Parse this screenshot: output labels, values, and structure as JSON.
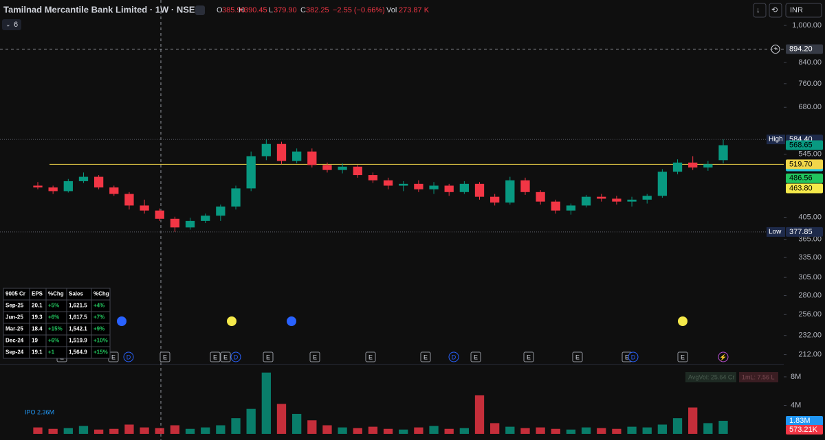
{
  "header": {
    "title": "Tamilnad Mercantile Bank Limited · 1W · NSE",
    "open_label": "O",
    "open": "385.90",
    "high_label": "H",
    "high": "390.45",
    "low_label": "L",
    "low": "379.90",
    "close_label": "C",
    "close": "382.25",
    "change": "−2.55 (−0.66%)",
    "volume_label": "Vol",
    "volume": "273.87 K",
    "interval_count": "6",
    "currency": "INR"
  },
  "fundamentals": {
    "header": [
      "9005 Cr",
      "EPS",
      "%Chg",
      "Sales",
      "%Chg"
    ],
    "rows": [
      [
        "Sep-25",
        "20.1",
        "+5%",
        "1,621.5",
        "+4%"
      ],
      [
        "Jun-25",
        "19.3",
        "+6%",
        "1,617.5",
        "+7%"
      ],
      [
        "Mar-25",
        "18.4",
        "+15%",
        "1,542.1",
        "+9%"
      ],
      [
        "Dec-24",
        "19",
        "+6%",
        "1,519.9",
        "+10%"
      ],
      [
        "Sep-24",
        "19.1",
        "+1",
        "1,564.9",
        "+15%"
      ]
    ]
  },
  "events": [
    "E",
    "E",
    "D",
    "E",
    "E",
    "E",
    "D",
    "E",
    "E",
    "E",
    "E",
    "D",
    "E",
    "E",
    "E",
    "E",
    "D",
    "E"
  ],
  "chart_data": {
    "type": "candlestick",
    "log_scale": true,
    "up_color": "#089981",
    "down_color": "#f23645",
    "candles": [
      [
        470,
        478,
        462,
        466
      ],
      [
        466,
        470,
        452,
        458
      ],
      [
        458,
        485,
        455,
        480
      ],
      [
        480,
        500,
        476,
        490
      ],
      [
        490,
        494,
        462,
        466
      ],
      [
        466,
        470,
        448,
        452
      ],
      [
        452,
        456,
        420,
        428
      ],
      [
        428,
        440,
        412,
        418
      ],
      [
        418,
        422,
        398,
        402
      ],
      [
        402,
        406,
        378,
        386
      ],
      [
        386,
        404,
        382,
        398
      ],
      [
        398,
        412,
        394,
        408
      ],
      [
        408,
        430,
        398,
        426
      ],
      [
        426,
        470,
        420,
        464
      ],
      [
        464,
        552,
        458,
        540
      ],
      [
        540,
        584,
        530,
        572
      ],
      [
        572,
        578,
        520,
        528
      ],
      [
        528,
        560,
        522,
        552
      ],
      [
        552,
        560,
        512,
        518
      ],
      [
        518,
        524,
        500,
        506
      ],
      [
        506,
        522,
        498,
        514
      ],
      [
        514,
        518,
        488,
        494
      ],
      [
        494,
        500,
        476,
        482
      ],
      [
        482,
        488,
        462,
        470
      ],
      [
        470,
        480,
        458,
        474
      ],
      [
        474,
        482,
        456,
        462
      ],
      [
        462,
        478,
        452,
        470
      ],
      [
        470,
        474,
        448,
        456
      ],
      [
        456,
        480,
        452,
        474
      ],
      [
        474,
        478,
        440,
        446
      ],
      [
        446,
        452,
        428,
        434
      ],
      [
        434,
        490,
        430,
        482
      ],
      [
        482,
        488,
        450,
        456
      ],
      [
        456,
        460,
        430,
        436
      ],
      [
        436,
        440,
        412,
        418
      ],
      [
        418,
        432,
        410,
        428
      ],
      [
        428,
        450,
        424,
        446
      ],
      [
        446,
        452,
        436,
        442
      ],
      [
        442,
        448,
        430,
        436
      ],
      [
        436,
        446,
        426,
        440
      ],
      [
        440,
        452,
        432,
        448
      ],
      [
        448,
        508,
        444,
        502
      ],
      [
        502,
        532,
        496,
        524
      ],
      [
        524,
        540,
        506,
        512
      ],
      [
        512,
        528,
        504,
        520
      ],
      [
        530,
        584.4,
        522,
        568.65
      ]
    ],
    "volumes": [
      900000,
      700000,
      800000,
      1100000,
      600000,
      700000,
      1300000,
      900000,
      800000,
      1200000,
      700000,
      900000,
      1200000,
      2200000,
      3500000,
      8600000,
      4200000,
      2800000,
      1900000,
      1200000,
      900000,
      800000,
      1000000,
      700000,
      600000,
      900000,
      1100000,
      700000,
      800000,
      5400000,
      1500000,
      1000000,
      800000,
      900000,
      700000,
      600000,
      900000,
      800000,
      700000,
      1000000,
      900000,
      1300000,
      2200000,
      3700000,
      1500000,
      1830000
    ],
    "ylim": [
      203,
      1023
    ],
    "yticks": [
      {
        "value": 1000,
        "label": "1,000.00"
      },
      {
        "value": 840,
        "label": "840.00"
      },
      {
        "value": 760,
        "label": "760.00"
      },
      {
        "value": 680,
        "label": "680.00"
      },
      {
        "value": 545,
        "label": "545.00"
      },
      {
        "value": 405,
        "label": "405.00"
      },
      {
        "value": 365,
        "label": "365.00"
      },
      {
        "value": 335,
        "label": "335.00"
      },
      {
        "value": 305,
        "label": "305.00"
      },
      {
        "value": 280,
        "label": "280.00"
      },
      {
        "value": 256,
        "label": "256.00"
      },
      {
        "value": 232,
        "label": "232.00"
      },
      {
        "value": 212,
        "label": "212.00"
      }
    ],
    "volume_ylim": [
      0,
      9000000
    ],
    "volume_ticks": [
      {
        "value": 8000000,
        "label": "8M"
      },
      {
        "value": 4000000,
        "label": "4M"
      }
    ],
    "crosshair": {
      "value": 894.2,
      "label": "894.20"
    },
    "high": {
      "name": "High",
      "value": 584.4,
      "label": "584.40"
    },
    "low": {
      "name": "Low",
      "value": 377.85,
      "label": "377.85"
    },
    "level": {
      "value": 519.7,
      "label": "519.70",
      "color": "#f0d64a"
    },
    "price_labels": [
      {
        "value": 568.65,
        "label": "568.65",
        "color": "#089981"
      },
      {
        "value": 514.4,
        "label": "514.40",
        "color": "#26c6da"
      },
      {
        "value": 486.56,
        "label": "486.56",
        "color": "#22c55e"
      },
      {
        "value": 463.8,
        "label": "463.80",
        "color": "#f5e94a"
      }
    ],
    "volume_labels": [
      {
        "value": 1830000,
        "label": "1.83M",
        "color": "#2196f3"
      },
      {
        "value": 573210,
        "label": "573.21K",
        "color": "#f23645"
      }
    ],
    "annotations": {
      "ipo": "IPO 2.36M",
      "avg_volume": "AvgVol: 25.64 Cr",
      "one_month": "1mL: 7.56 L"
    }
  }
}
